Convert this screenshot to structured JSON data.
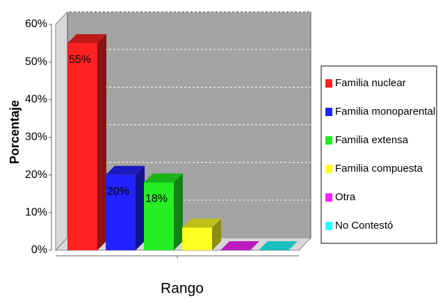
{
  "chart_data": {
    "type": "bar3d",
    "x_label": "Rango",
    "y_label": "Porcentaje",
    "ylim": [
      0,
      60
    ],
    "yticks": [
      {
        "value": 0,
        "label": "0%"
      },
      {
        "value": 10,
        "label": "10%"
      },
      {
        "value": 20,
        "label": "20%"
      },
      {
        "value": 30,
        "label": "30%"
      },
      {
        "value": 40,
        "label": "40%"
      },
      {
        "value": 50,
        "label": "50%"
      },
      {
        "value": 60,
        "label": "60%"
      }
    ],
    "grid": true,
    "legend": "right",
    "series": [
      {
        "name": "Familia nuclear",
        "color": "#ff2222",
        "values": [
          55
        ],
        "value_labels": [
          "55%"
        ]
      },
      {
        "name": "Familia monoparental",
        "color": "#2222ff",
        "values": [
          20
        ],
        "value_labels": [
          "20%"
        ]
      },
      {
        "name": "Familia extensa",
        "color": "#22ee22",
        "values": [
          18
        ],
        "value_labels": [
          "18%"
        ]
      },
      {
        "name": "Familia compuesta",
        "color": "#ffff22",
        "values": [
          6
        ]
      },
      {
        "name": "Otra",
        "color": "#ff22ff",
        "values": [
          0
        ]
      },
      {
        "name": "No Contestó",
        "color": "#22ffff",
        "values": [
          0
        ]
      }
    ]
  }
}
